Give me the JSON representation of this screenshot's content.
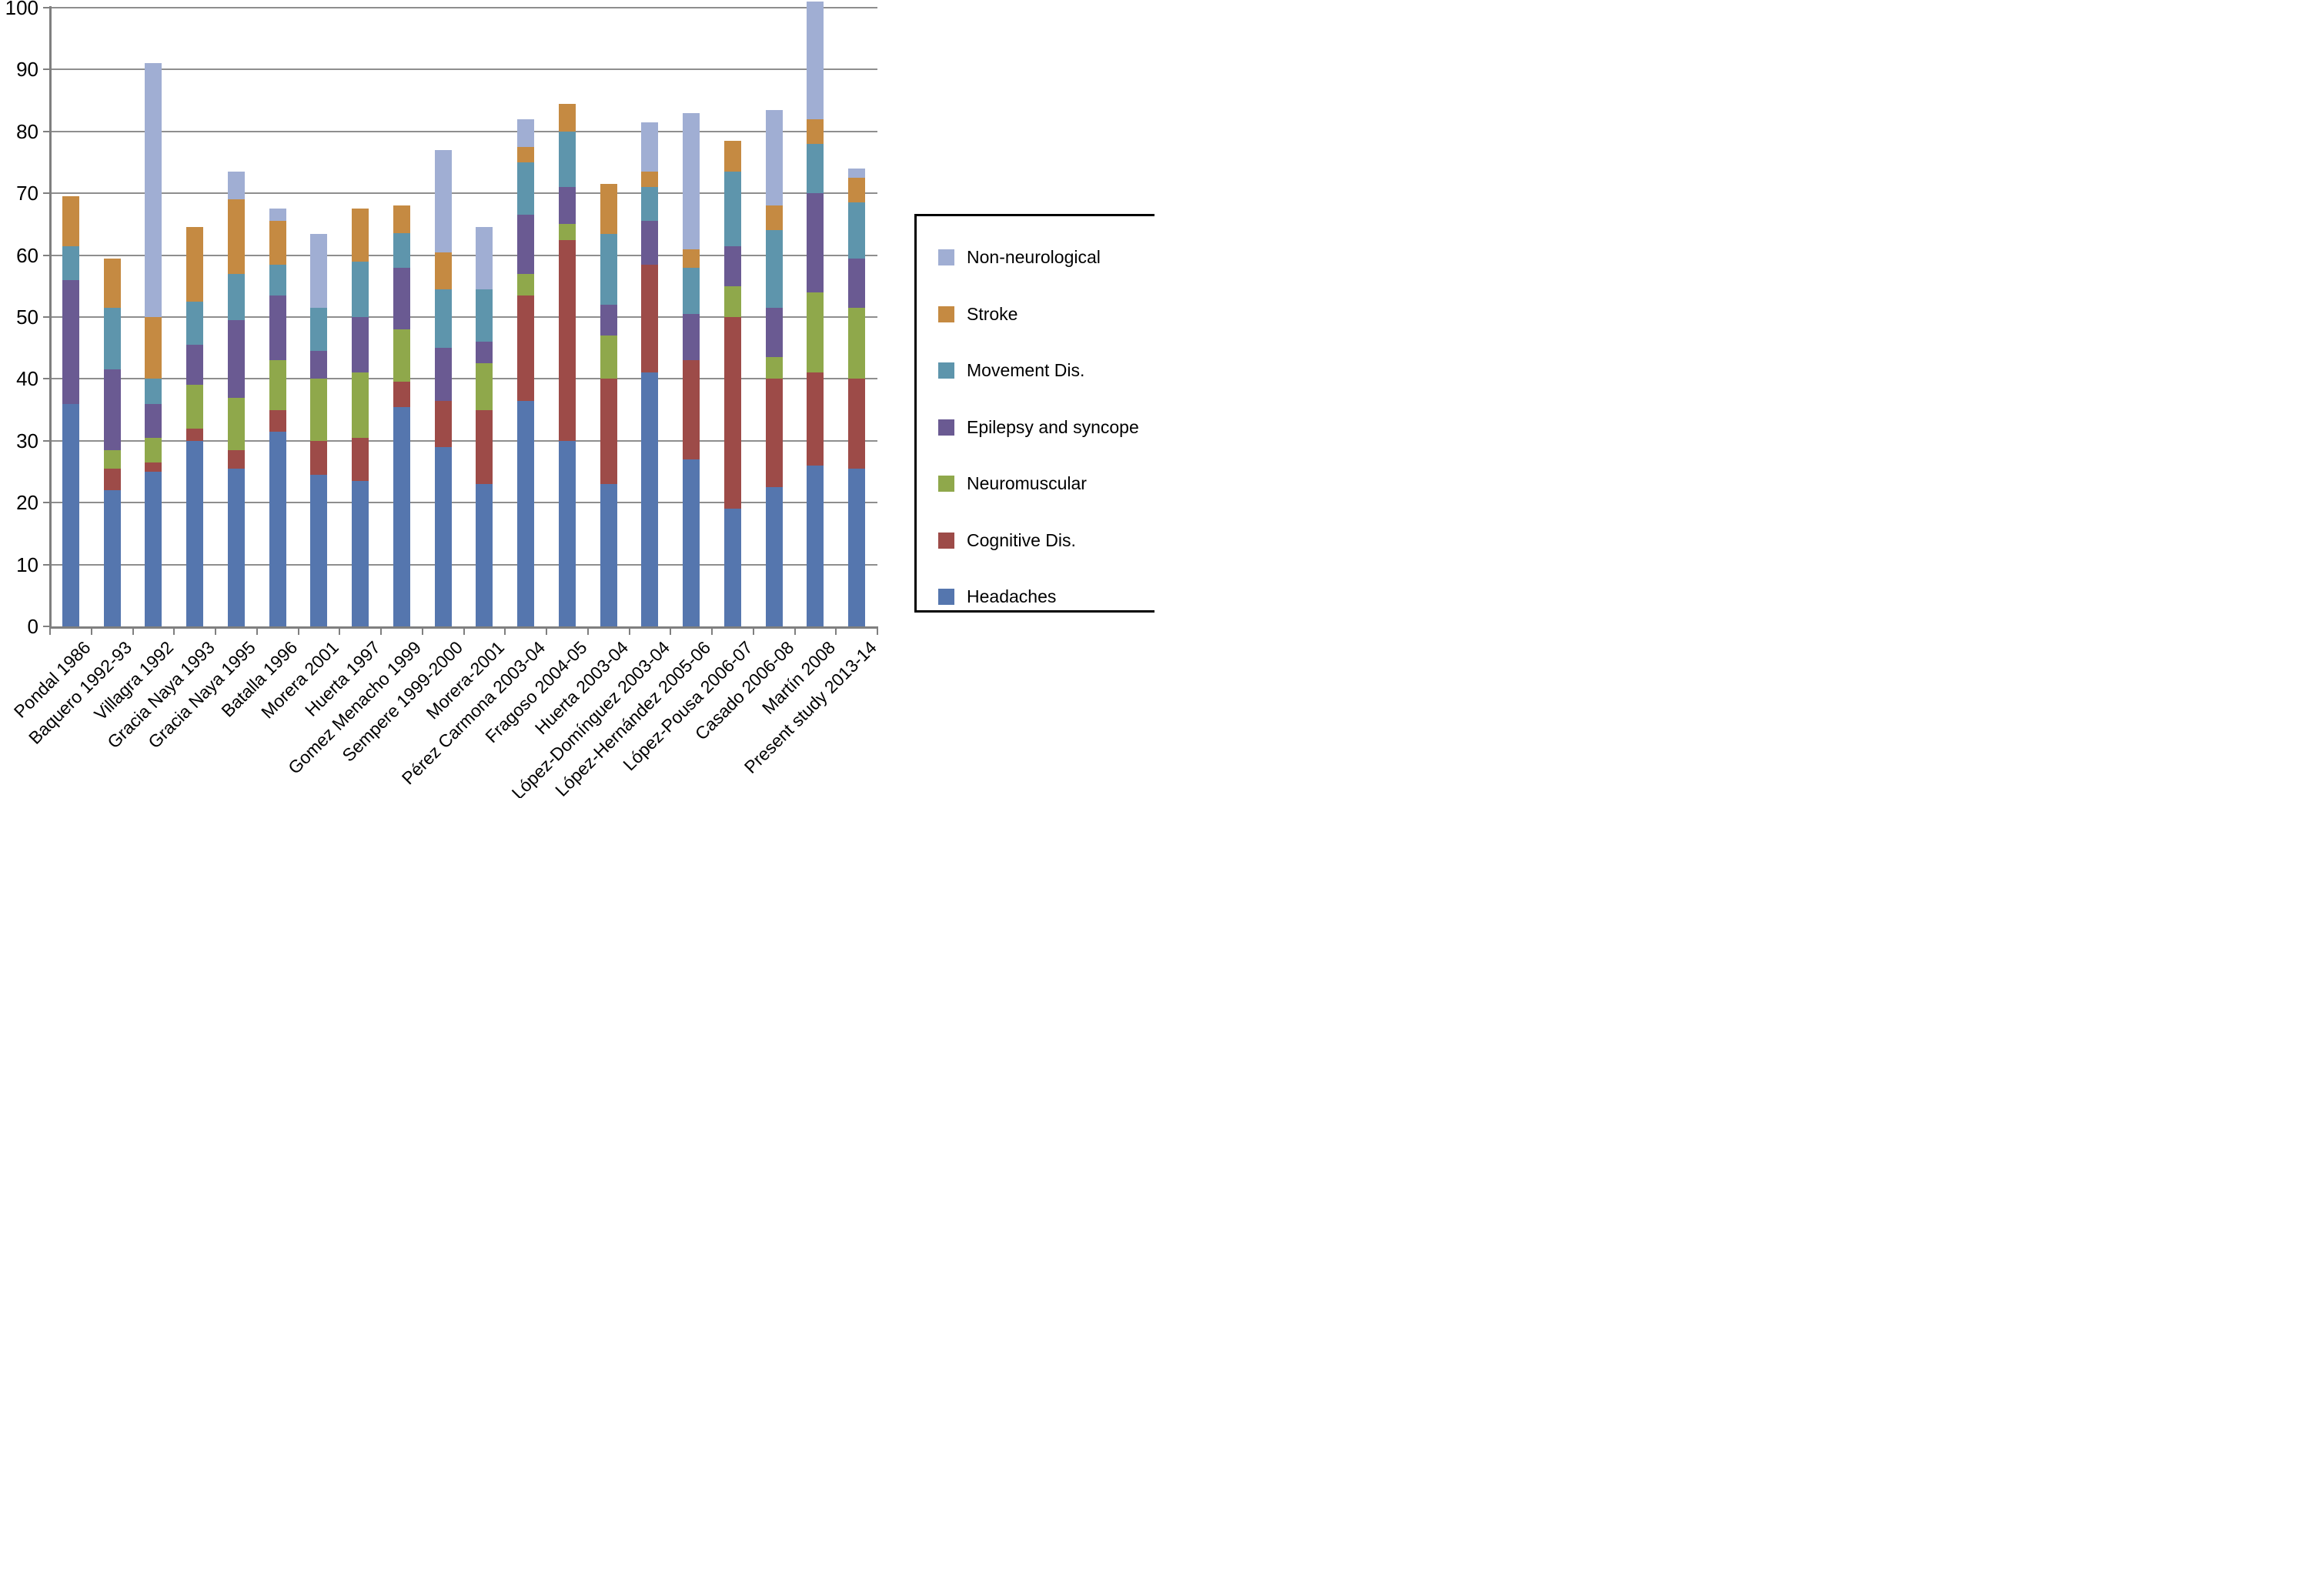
{
  "chart_data": {
    "type": "bar",
    "stacked": true,
    "title": "",
    "xlabel": "",
    "ylabel": "",
    "ylim": [
      0,
      100
    ],
    "yticks": [
      0,
      10,
      20,
      30,
      40,
      50,
      60,
      70,
      80,
      90,
      100
    ],
    "grid": true,
    "legend_position": "right-outside",
    "categories": [
      "Pondal 1986",
      "Baquero 1992-93",
      "Villagra 1992",
      "Gracia Naya 1993",
      "Gracia Naya 1995",
      "Batalla 1996",
      "Morera 2001",
      "Huerta 1997",
      "Gomez Menacho 1999",
      "Sempere 1999-2000",
      "Morera-2001",
      "Pérez Carmona 2003-04",
      "Fragoso 2004-05",
      "Huerta 2003-04",
      "López-Domínguez 2003-04",
      "López-Hernández 2005-06",
      "López-Pousa 2006-07",
      "Casado 2006-08",
      "Martín 2008",
      "Present study 2013-14"
    ],
    "series": [
      {
        "name": "Headaches",
        "color": "#5576AE",
        "values": [
          36,
          22,
          25,
          30,
          25.5,
          31.5,
          24.5,
          23.5,
          35.5,
          29,
          23,
          36.5,
          30,
          23,
          41,
          27,
          19,
          22.5,
          26,
          25.5
        ]
      },
      {
        "name": "Cognitive Dis.",
        "color": "#9D4B48",
        "values": [
          0,
          3.5,
          1.5,
          2,
          3,
          3.5,
          5.5,
          7,
          4,
          7.5,
          12,
          17,
          32.5,
          17,
          17.5,
          16,
          31,
          17.5,
          15,
          14.5
        ]
      },
      {
        "name": "Neuromuscular",
        "color": "#8FA84B",
        "values": [
          0,
          3,
          4,
          7,
          8.5,
          8,
          10,
          10.5,
          8.5,
          0,
          7.5,
          3.5,
          2.5,
          7,
          0,
          0,
          5,
          3.5,
          13,
          11.5
        ]
      },
      {
        "name": "Epilepsy and syncope",
        "color": "#6A5A92",
        "values": [
          20,
          13,
          5.5,
          6.5,
          12.5,
          10.5,
          4.5,
          9,
          10,
          8.5,
          3.5,
          9.5,
          6,
          5,
          7,
          7.5,
          6.5,
          8,
          16,
          8
        ]
      },
      {
        "name": "Movement Dis.",
        "color": "#5E95AC",
        "values": [
          5.5,
          10,
          4,
          7,
          7.5,
          5,
          7,
          9,
          5.5,
          9.5,
          8.5,
          8.5,
          9,
          11.5,
          5.5,
          7.5,
          12,
          12.5,
          8,
          9
        ]
      },
      {
        "name": "Stroke",
        "color": "#C58A42",
        "values": [
          8,
          8,
          10,
          12,
          12,
          7,
          0,
          8.5,
          4.5,
          6,
          0,
          2.5,
          4.5,
          8,
          2.5,
          3,
          5,
          4,
          4,
          4
        ]
      },
      {
        "name": "Non-neurological",
        "color": "#A0AED3",
        "values": [
          0,
          0,
          41,
          0,
          4.5,
          2,
          12,
          0,
          0,
          16.5,
          10,
          4.5,
          0,
          0,
          8,
          22,
          0,
          15.5,
          19,
          1.5
        ]
      }
    ],
    "legend_entries": [
      "Non-neurological",
      "Stroke",
      "Movement Dis.",
      "Epilepsy and syncope",
      "Neuromuscular",
      "Cognitive Dis.",
      "Headaches"
    ]
  }
}
